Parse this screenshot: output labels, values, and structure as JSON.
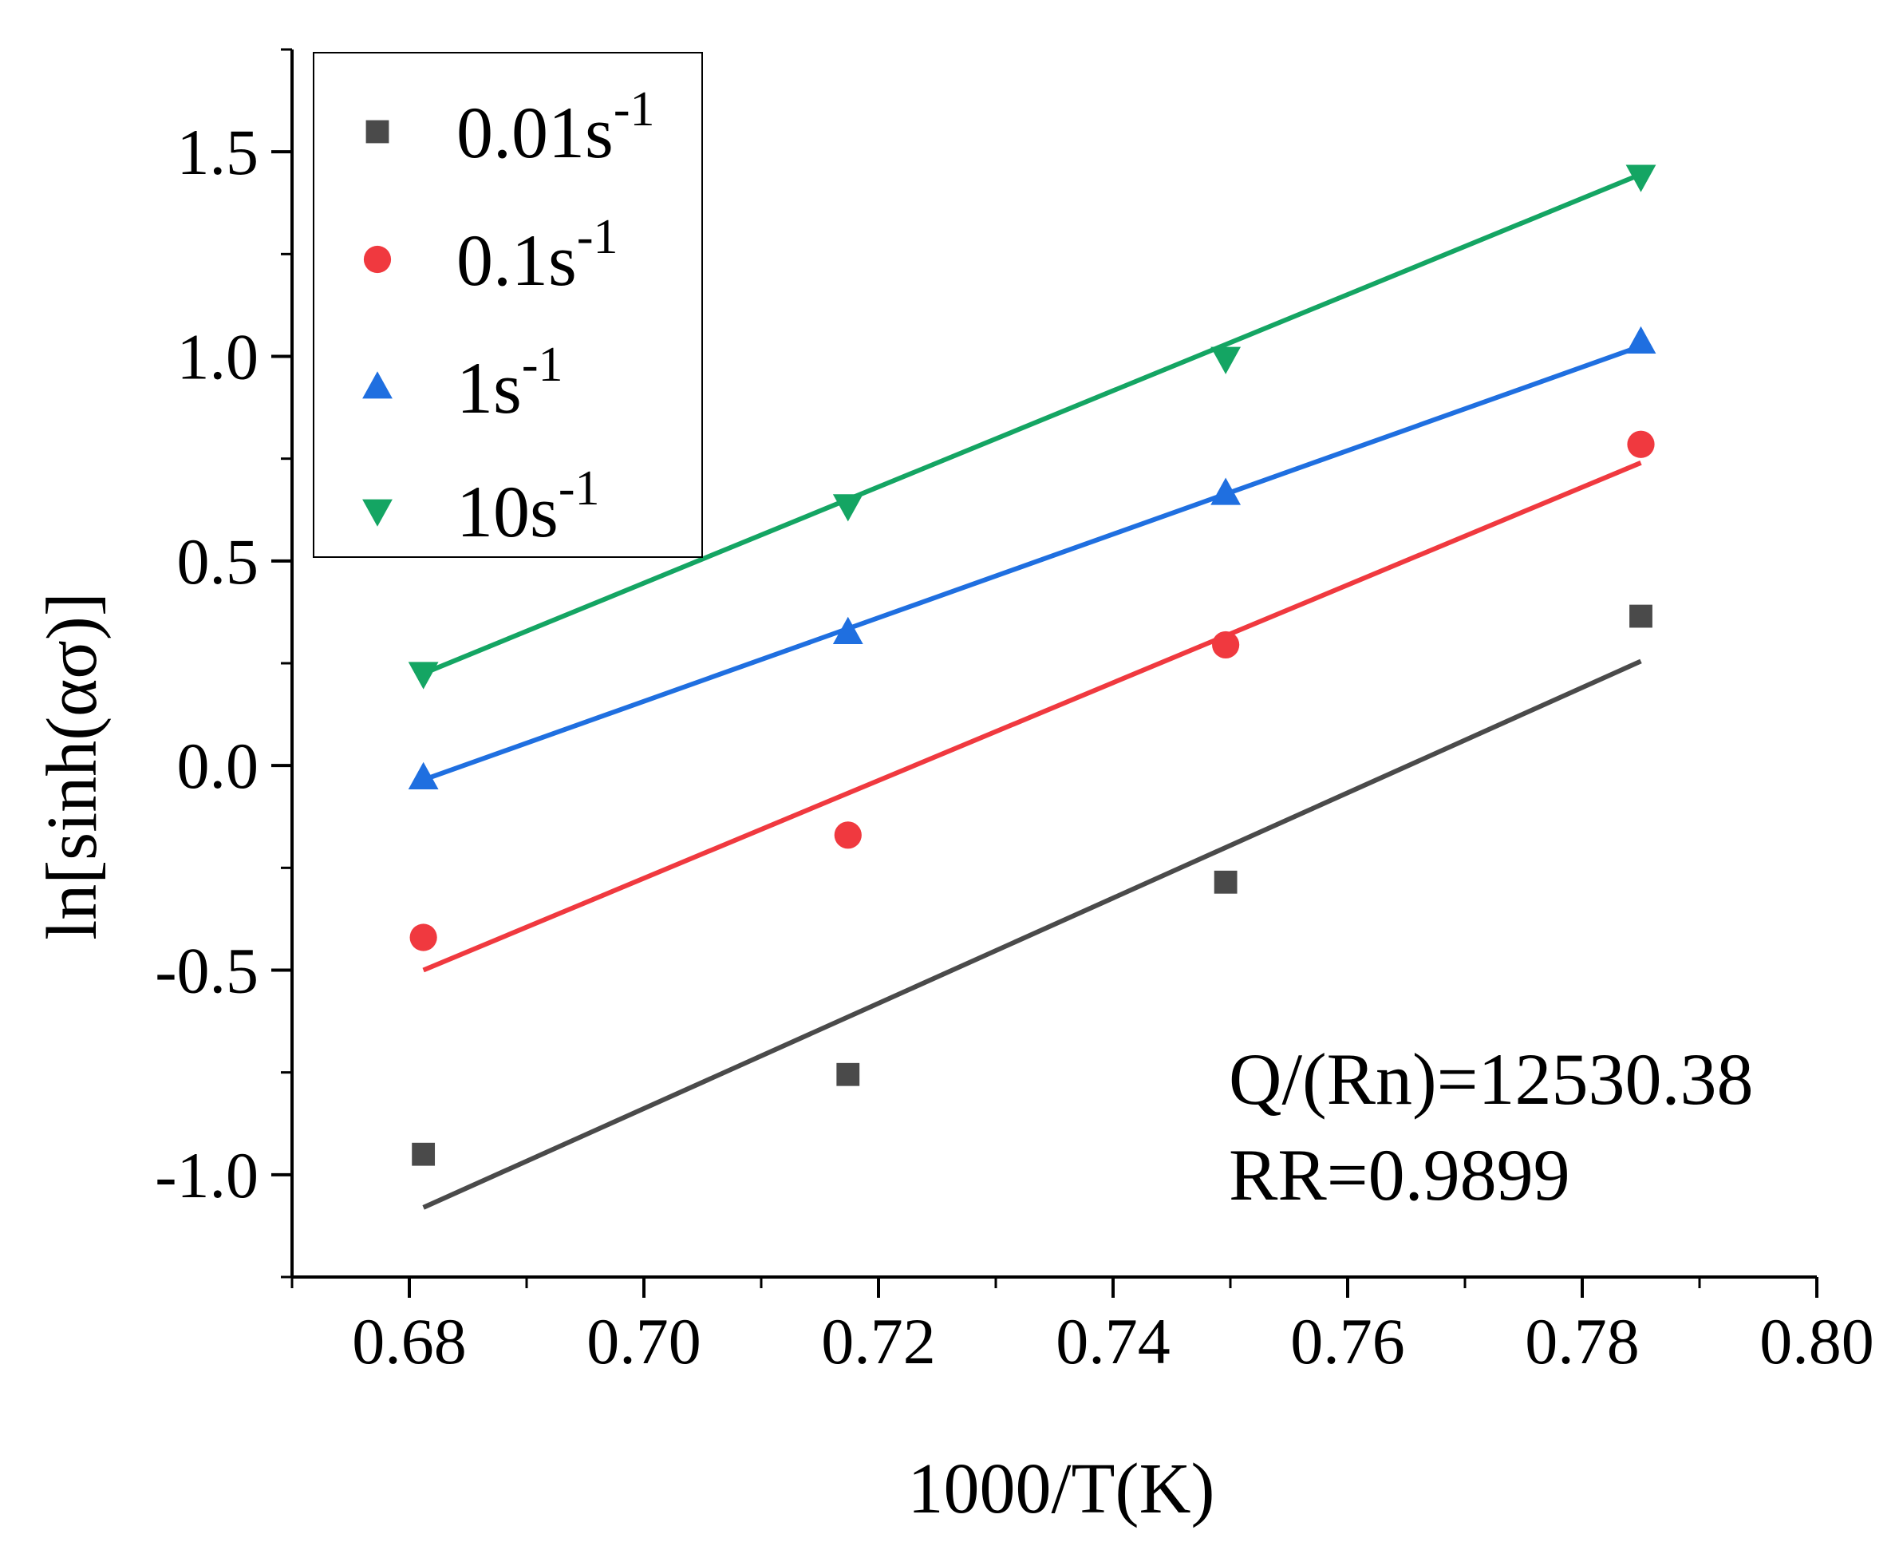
{
  "chart_data": {
    "type": "scatter",
    "title": "",
    "xlabel": "1000/T(K)",
    "ylabel": "ln[sinh(ασ)]",
    "xlim": [
      0.67,
      0.8
    ],
    "ylim": [
      -1.25,
      1.75
    ],
    "xticks": [
      0.68,
      0.7,
      0.72,
      0.74,
      0.76,
      0.78,
      0.8
    ],
    "xtick_labels": [
      "0.68",
      "0.70",
      "0.72",
      "0.74",
      "0.76",
      "0.78",
      "0.80"
    ],
    "yticks": [
      -1.0,
      -0.5,
      0.0,
      0.5,
      1.0,
      1.5
    ],
    "ytick_labels": [
      "-1.0",
      "-0.5",
      "0.0",
      "0.5",
      "1.0",
      "1.5"
    ],
    "grid": false,
    "legend_position": "top-left",
    "series": [
      {
        "name": "0.01s",
        "sup": "-1",
        "marker": "square",
        "color": "#4a4a4a",
        "x": [
          0.6812,
          0.7174,
          0.7496,
          0.785
        ],
        "y": [
          -0.95,
          -0.755,
          -0.285,
          0.365
        ],
        "fit": {
          "x": [
            0.6812,
            0.785
          ],
          "y": [
            -1.08,
            0.255
          ]
        }
      },
      {
        "name": "0.1s",
        "sup": "-1",
        "marker": "circle",
        "color": "#f0393f",
        "x": [
          0.6812,
          0.7174,
          0.7496,
          0.785
        ],
        "y": [
          -0.42,
          -0.17,
          0.295,
          0.785
        ],
        "fit": {
          "x": [
            0.6812,
            0.785
          ],
          "y": [
            -0.5,
            0.74
          ]
        }
      },
      {
        "name": "1s",
        "sup": "-1",
        "marker": "triangle-up",
        "color": "#1f6fe0",
        "x": [
          0.6812,
          0.7174,
          0.7496,
          0.785
        ],
        "y": [
          -0.03,
          0.325,
          0.665,
          1.035
        ],
        "fit": {
          "x": [
            0.6812,
            0.785
          ],
          "y": [
            -0.035,
            1.025
          ]
        }
      },
      {
        "name": "10s",
        "sup": "-1",
        "marker": "triangle-down",
        "color": "#14a563",
        "x": [
          0.6812,
          0.7174,
          0.7496,
          0.785
        ],
        "y": [
          0.225,
          0.635,
          0.995,
          1.44
        ],
        "fit": {
          "x": [
            0.6812,
            0.785
          ],
          "y": [
            0.225,
            1.445
          ]
        }
      }
    ],
    "annotations": [
      "Q/(Rn)=12530.38",
      "RR=0.9899"
    ]
  }
}
